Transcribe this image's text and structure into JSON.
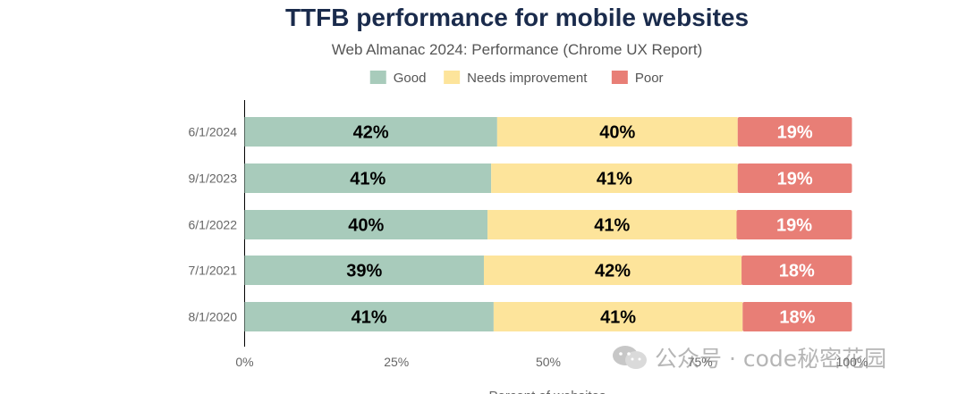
{
  "chart_data": {
    "type": "bar",
    "orientation": "horizontal",
    "stacked": true,
    "title": "TTFB performance for mobile websites",
    "subtitle": "Web Almanac 2024: Performance (Chrome UX Report)",
    "categories": [
      "6/1/2024",
      "9/1/2023",
      "6/1/2022",
      "7/1/2021",
      "8/1/2020"
    ],
    "series": [
      {
        "name": "Good",
        "color": "#a8cbbb",
        "values": [
          42,
          41,
          40,
          39,
          41
        ],
        "labels": [
          "42%",
          "41%",
          "40%",
          "39%",
          "41%"
        ]
      },
      {
        "name": "Needs improvement",
        "color": "#fde49b",
        "values": [
          40,
          41,
          41,
          42,
          41
        ],
        "labels": [
          "40%",
          "41%",
          "41%",
          "42%",
          "41%"
        ]
      },
      {
        "name": "Poor",
        "color": "#e87e76",
        "values": [
          19,
          19,
          19,
          18,
          18
        ],
        "labels": [
          "19%",
          "19%",
          "19%",
          "18%",
          "18%"
        ]
      }
    ],
    "xlim": [
      0,
      100
    ],
    "xticks": [
      "0%",
      "25%",
      "50%",
      "75%",
      "100%"
    ],
    "xlabel": "Percent of websites",
    "ylabel": "",
    "legend_position": "top",
    "grid": false
  },
  "colors": {
    "title": "#1a2b4c",
    "subtitle": "#555555",
    "tick": "#666666",
    "data_label": "#000000",
    "poor_label": "#ffffff"
  },
  "watermark": {
    "icon": "wechat-icon",
    "text": "公众号 · code秘密花园"
  }
}
